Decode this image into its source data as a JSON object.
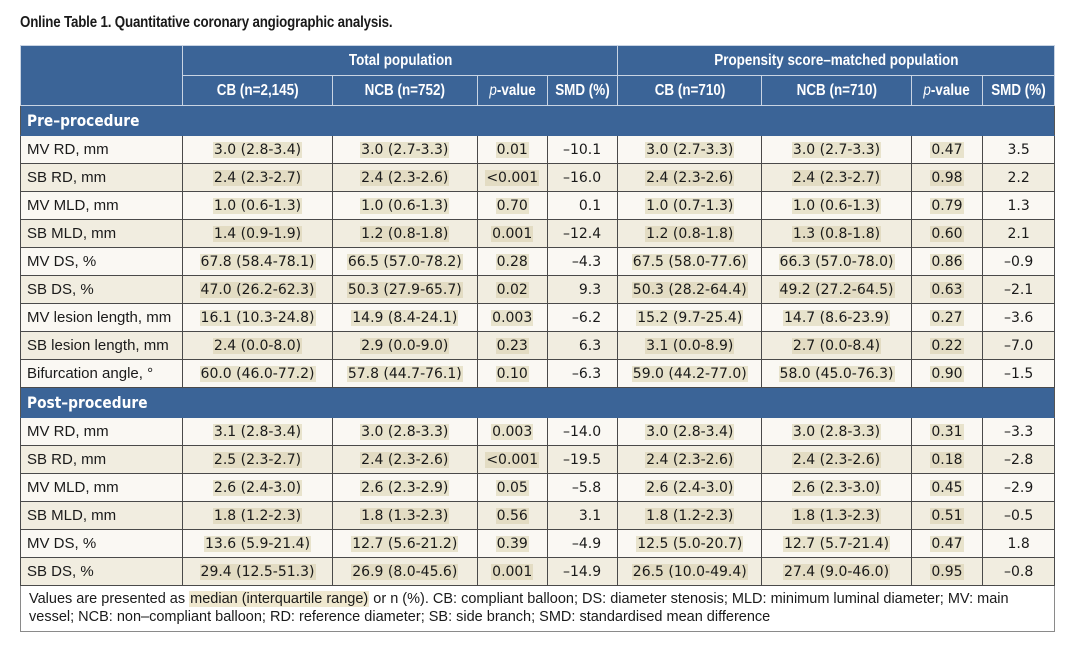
{
  "title": "Online Table 1. Quantitative coronary angiographic analysis.",
  "header": {
    "group1": "Total population",
    "group2": "Propensity score–matched population",
    "columns": [
      "CB (n=2,145)",
      "NCB (n=752)",
      "p",
      "-value",
      "SMD (%)",
      "CB (n=710)",
      "NCB (n=710)",
      "p",
      "-value",
      "SMD (%)"
    ]
  },
  "sections": [
    {
      "title": "Pre–procedure",
      "rows": [
        [
          "MV RD, mm",
          "3.0 (2.8-3.4)",
          "3.0 (2.7-3.3)",
          "0.01",
          "–10.1",
          "3.0 (2.7-3.3)",
          "3.0 (2.7-3.3)",
          "0.47",
          "3.5"
        ],
        [
          "SB RD, mm",
          "2.4 (2.3-2.7)",
          "2.4 (2.3-2.6)",
          "<0.001",
          "–16.0",
          "2.4 (2.3-2.6)",
          "2.4 (2.3-2.7)",
          "0.98",
          "2.2"
        ],
        [
          "MV MLD, mm",
          "1.0 (0.6-1.3)",
          "1.0 (0.6-1.3)",
          "0.70",
          "0.1",
          "1.0 (0.7-1.3)",
          "1.0 (0.6-1.3)",
          "0.79",
          "1.3"
        ],
        [
          "SB MLD, mm",
          "1.4 (0.9-1.9)",
          "1.2 (0.8-1.8)",
          "0.001",
          "–12.4",
          "1.2 (0.8-1.8)",
          "1.3 (0.8-1.8)",
          "0.60",
          "2.1"
        ],
        [
          "MV DS, %",
          "67.8 (58.4-78.1)",
          "66.5 (57.0-78.2)",
          "0.28",
          "–4.3",
          "67.5 (58.0-77.6)",
          "66.3 (57.0-78.0)",
          "0.86",
          "–0.9"
        ],
        [
          "SB DS, %",
          "47.0 (26.2-62.3)",
          "50.3 (27.9-65.7)",
          "0.02",
          "9.3",
          "50.3 (28.2-64.4)",
          "49.2 (27.2-64.5)",
          "0.63",
          "–2.1"
        ],
        [
          "MV lesion length, mm",
          "16.1 (10.3-24.8)",
          "14.9 (8.4-24.1)",
          "0.003",
          "–6.2",
          "15.2 (9.7-25.4)",
          "14.7 (8.6-23.9)",
          "0.27",
          "–3.6"
        ],
        [
          "SB lesion length, mm",
          "2.4 (0.0-8.0)",
          "2.9 (0.0-9.0)",
          "0.23",
          "6.3",
          "3.1 (0.0-8.9)",
          "2.7 (0.0-8.4)",
          "0.22",
          "–7.0"
        ],
        [
          "Bifurcation angle, °",
          "60.0 (46.0-77.2)",
          "57.8 (44.7-76.1)",
          "0.10",
          "–6.3",
          "59.0 (44.2-77.0)",
          "58.0 (45.0-76.3)",
          "0.90",
          "–1.5"
        ]
      ]
    },
    {
      "title": "Post–procedure",
      "rows": [
        [
          "MV RD, mm",
          "3.1 (2.8-3.4)",
          "3.0 (2.8-3.3)",
          "0.003",
          "–14.0",
          "3.0 (2.8-3.4)",
          "3.0 (2.8-3.3)",
          "0.31",
          "–3.3"
        ],
        [
          "SB RD, mm",
          "2.5 (2.3-2.7)",
          "2.4 (2.3-2.6)",
          "<0.001",
          "–19.5",
          "2.4 (2.3-2.6)",
          "2.4 (2.3-2.6)",
          "0.18",
          "–2.8"
        ],
        [
          "MV MLD, mm",
          "2.6 (2.4-3.0)",
          "2.6 (2.3-2.9)",
          "0.05",
          "–5.8",
          "2.6 (2.4-3.0)",
          "2.6 (2.3-3.0)",
          "0.45",
          "–2.9"
        ],
        [
          "SB MLD, mm",
          "1.8 (1.2-2.3)",
          "1.8 (1.3-2.3)",
          "0.56",
          "3.1",
          "1.8 (1.2-2.3)",
          "1.8 (1.3-2.3)",
          "0.51",
          "–0.5"
        ],
        [
          "MV DS, %",
          "13.6 (5.9-21.4)",
          "12.7 (5.6-21.2)",
          "0.39",
          "–4.9",
          "12.5 (5.0-20.7)",
          "12.7 (5.7-21.4)",
          "0.47",
          "1.8"
        ],
        [
          "SB DS, %",
          "29.4 (12.5-51.3)",
          "26.9 (8.0-45.6)",
          "0.001",
          "–14.9",
          "26.5 (10.0-49.4)",
          "27.4 (9.0-46.0)",
          "0.95",
          "–0.8"
        ]
      ]
    }
  ],
  "footnote": {
    "pre": "Values are presented as ",
    "highlight": "median (interquartile range)",
    "post": " or n (%). CB: compliant balloon; DS: diameter stenosis; MLD: minimum luminal diameter; MV: main vessel; NCB: non–compliant balloon; RD: reference diameter; SB: side branch; SMD: standardised mean difference"
  },
  "colors": {
    "header_bg": "#3b6497",
    "row_odd": "#faf8f3",
    "row_even": "#f1ede0",
    "highlight": "#e8e3cc"
  }
}
